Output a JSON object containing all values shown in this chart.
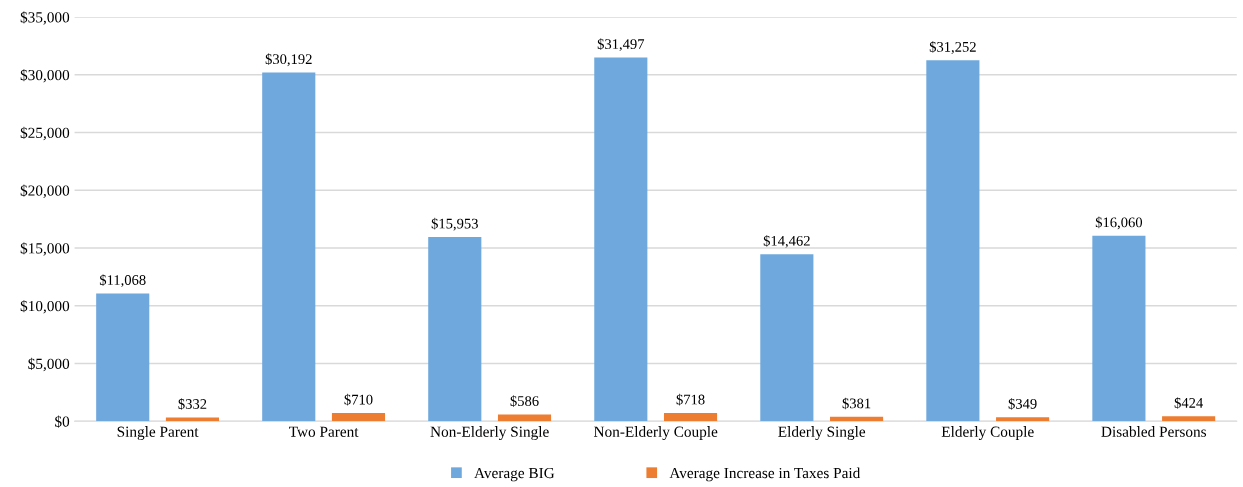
{
  "chart_data": {
    "type": "bar",
    "categories": [
      "Single Parent",
      "Two Parent",
      "Non-Elderly Single",
      "Non-Elderly Couple",
      "Elderly Single",
      "Elderly Couple",
      "Disabled Persons"
    ],
    "series": [
      {
        "name": "Average BIG",
        "color": "#6fa8dc",
        "values": [
          11068,
          30192,
          15953,
          31497,
          14462,
          31252,
          16060
        ],
        "value_labels": [
          "$11,068",
          "$30,192",
          "$15,953",
          "$31,497",
          "$14,462",
          "$31,252",
          "$16,060"
        ]
      },
      {
        "name": "Average Increase in Taxes Paid",
        "color": "#ed7d31",
        "values": [
          332,
          710,
          586,
          718,
          381,
          349,
          424
        ],
        "value_labels": [
          "$332",
          "$710",
          "$586",
          "$718",
          "$381",
          "$349",
          "$424"
        ]
      }
    ],
    "ylim": [
      0,
      35000
    ],
    "yticks": [
      {
        "value": 0,
        "label": "$0"
      },
      {
        "value": 5000,
        "label": "$5,000"
      },
      {
        "value": 10000,
        "label": "$10,000"
      },
      {
        "value": 15000,
        "label": "$15,000"
      },
      {
        "value": 20000,
        "label": "$20,000"
      },
      {
        "value": 25000,
        "label": "$25,000"
      },
      {
        "value": 30000,
        "label": "$30,000"
      },
      {
        "value": 35000,
        "label": "$35,000"
      }
    ],
    "grid": "y",
    "legend": "bottom"
  }
}
